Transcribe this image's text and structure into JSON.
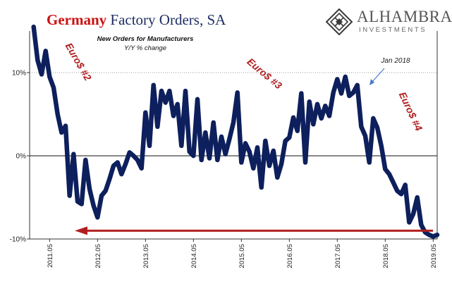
{
  "header": {
    "title_highlight": "Germany",
    "title_rest": " Factory Orders, SA"
  },
  "logo": {
    "name": "ALHAMBRA",
    "sub": "INVESTMENTS",
    "icon": "diamond-lattice-icon"
  },
  "chart_data": {
    "type": "line",
    "subtitle_line1": "New Orders for Manufacturers",
    "subtitle_line2": "Y/Y % change",
    "x_tick_labels": [
      "2011.05",
      "2012.05",
      "2013.05",
      "2014.05",
      "2015.05",
      "2016.05",
      "2017.05",
      "2018.05",
      "2019.05"
    ],
    "y_tick_labels": [
      {
        "value": 10,
        "label": "10%"
      },
      {
        "value": 0,
        "label": "0%"
      },
      {
        "value": -10,
        "label": "-10%"
      }
    ],
    "ylim": [
      -10,
      15
    ],
    "xlim_months": [
      "2010-12",
      "2019-06"
    ],
    "grid": "horizontal dotted at 10 and -10; solid zero line",
    "line_color": "#0d1f5c",
    "annotations": [
      {
        "text": "Euro$ #2",
        "color": "#b01e1e"
      },
      {
        "text": "Euro$ #3",
        "color": "#b01e1e"
      },
      {
        "text": "Euro$ #4",
        "color": "#b01e1e"
      },
      {
        "text": "Jan 2018",
        "color": "#222222",
        "arrow_color": "#4a78c8"
      }
    ],
    "red_arrow": {
      "color": "#b21e1e",
      "level": -9
    },
    "series": [
      {
        "x": [
          "2011-01",
          "2011-02",
          "2011-03",
          "2011-04",
          "2011-05",
          "2011-06",
          "2011-07",
          "2011-08",
          "2011-09",
          "2011-10",
          "2011-11",
          "2011-12",
          "2012-01",
          "2012-02",
          "2012-03",
          "2012-04",
          "2012-05",
          "2012-06",
          "2012-07",
          "2012-08",
          "2012-09",
          "2012-10",
          "2012-11",
          "2012-12",
          "2013-01",
          "2013-02",
          "2013-03",
          "2013-04",
          "2013-05",
          "2013-06",
          "2013-07",
          "2013-08",
          "2013-09",
          "2013-10",
          "2013-11",
          "2013-12",
          "2014-01",
          "2014-02",
          "2014-03",
          "2014-04",
          "2014-05",
          "2014-06",
          "2014-07",
          "2014-08",
          "2014-09",
          "2014-10",
          "2014-11",
          "2014-12",
          "2015-01",
          "2015-02",
          "2015-03",
          "2015-04",
          "2015-05",
          "2015-06",
          "2015-07",
          "2015-08",
          "2015-09",
          "2015-10",
          "2015-11",
          "2015-12",
          "2016-01",
          "2016-02",
          "2016-03",
          "2016-04",
          "2016-05",
          "2016-06",
          "2016-07",
          "2016-08",
          "2016-09",
          "2016-10",
          "2016-11",
          "2016-12",
          "2017-01",
          "2017-02",
          "2017-03",
          "2017-04",
          "2017-05",
          "2017-06",
          "2017-07",
          "2017-08",
          "2017-09",
          "2017-10",
          "2017-11",
          "2017-12",
          "2018-01",
          "2018-02",
          "2018-03",
          "2018-04",
          "2018-05",
          "2018-06",
          "2018-07",
          "2018-08",
          "2018-09",
          "2018-10",
          "2018-11",
          "2018-12",
          "2019-01",
          "2019-02",
          "2019-03",
          "2019-04",
          "2019-05",
          "2019-06"
        ],
        "values": [
          15.5,
          11.5,
          9.8,
          12.6,
          9.5,
          8.2,
          5.0,
          2.8,
          3.6,
          -4.8,
          0.2,
          -5.5,
          -5.8,
          -0.5,
          -4.0,
          -6.0,
          -7.4,
          -4.8,
          -4.2,
          -2.8,
          -1.2,
          -0.8,
          -2.2,
          -1.0,
          0.4,
          0.0,
          -0.5,
          -1.5,
          5.2,
          1.2,
          8.5,
          3.5,
          7.8,
          6.4,
          7.8,
          4.8,
          6.2,
          1.2,
          7.8,
          0.5,
          0.0,
          6.8,
          -0.5,
          2.8,
          -0.3,
          4.0,
          -0.5,
          2.3,
          0.2,
          2.0,
          4.0,
          7.6,
          -0.8,
          1.5,
          0.5,
          -1.5,
          1.0,
          -3.8,
          1.8,
          -1.2,
          0.6,
          -2.6,
          -1.0,
          1.8,
          2.2,
          4.6,
          3.0,
          7.5,
          -0.8,
          6.5,
          3.8,
          6.2,
          4.5,
          6.0,
          4.8,
          7.6,
          9.2,
          7.5,
          9.5,
          7.2,
          7.6,
          8.5,
          3.5,
          2.4,
          -0.8,
          4.5,
          3.4,
          1.2,
          -1.6,
          -2.2,
          -3.2,
          -4.2,
          -4.6,
          -3.5,
          -8.0,
          -7.0,
          -5.0,
          -8.3,
          -9.2,
          -9.5,
          -9.7,
          -9.5
        ]
      }
    ]
  }
}
